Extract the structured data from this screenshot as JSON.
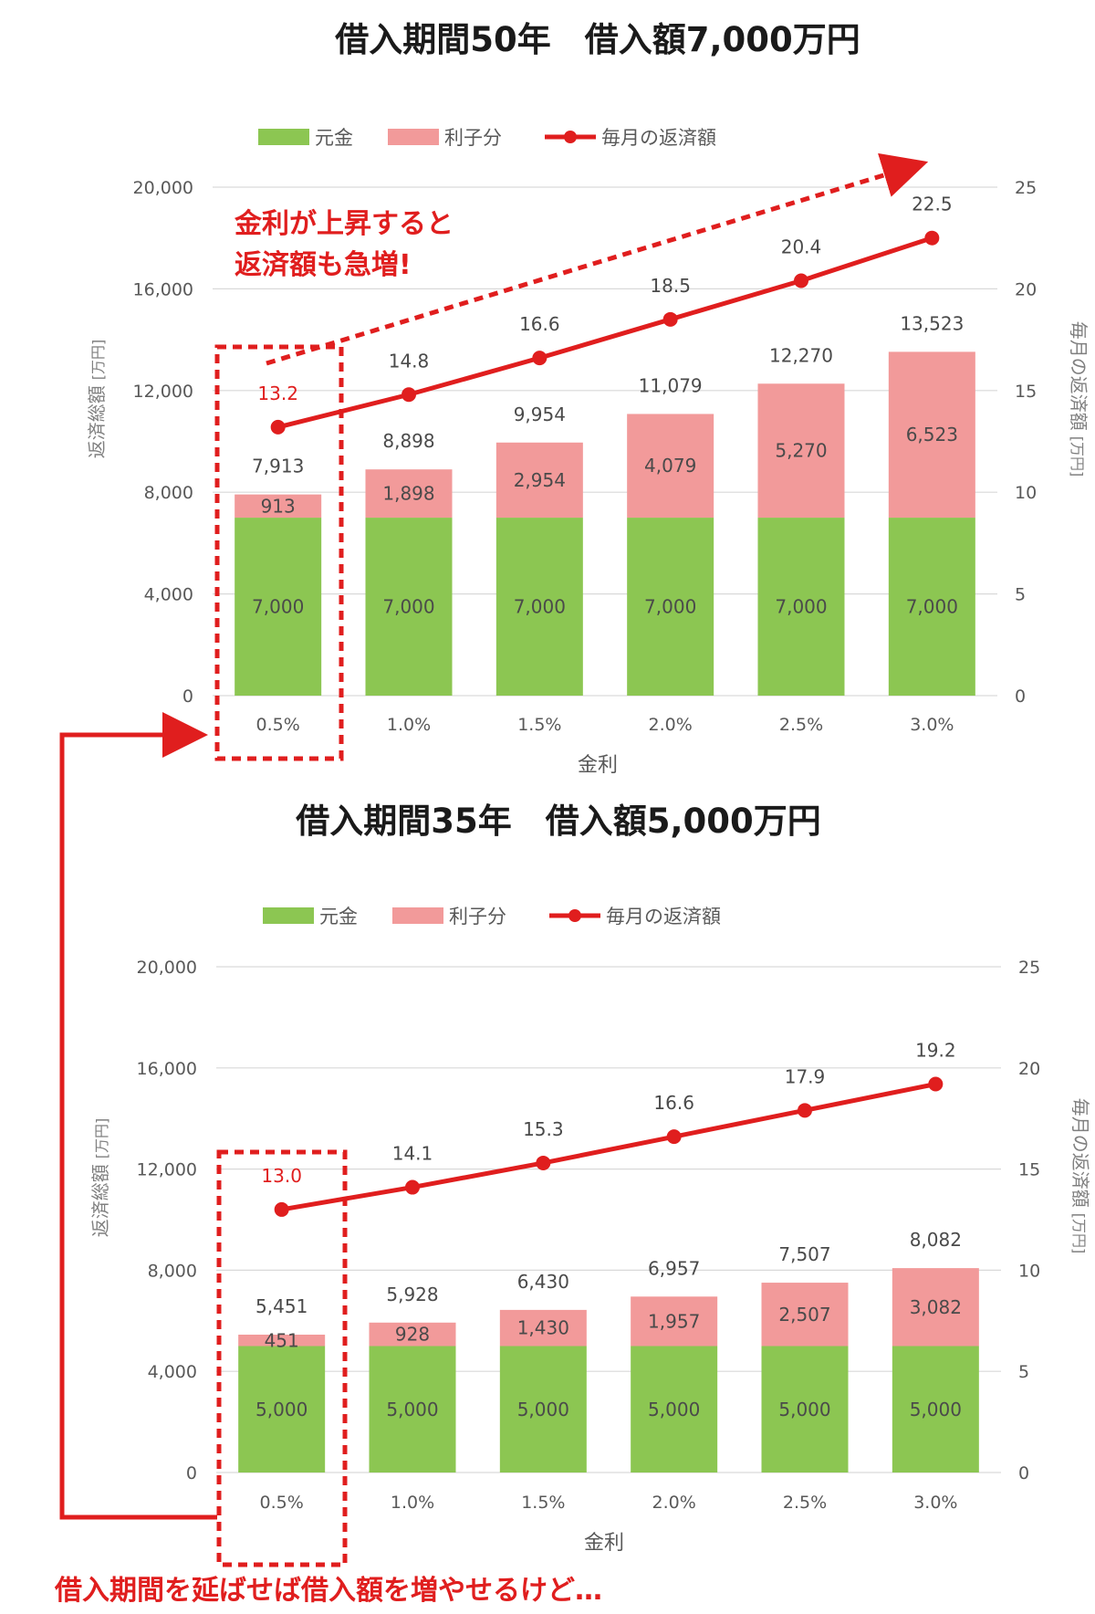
{
  "colors": {
    "principal": "#8cc652",
    "interest": "#f29a9a",
    "line": "#e01e1e",
    "highlight": "#e01e1e",
    "axis_text": "#595959",
    "grid": "#d9d9d9"
  },
  "chart_data": [
    {
      "type": "bar",
      "stacked": true,
      "title": "借入期間50年　借入額7,000万円",
      "categories": [
        "0.5%",
        "1.0%",
        "1.5%",
        "2.0%",
        "2.5%",
        "3.0%"
      ],
      "series": [
        {
          "name": "元金",
          "type": "bar",
          "values": [
            7000,
            7000,
            7000,
            7000,
            7000,
            7000
          ]
        },
        {
          "name": "利子分",
          "type": "bar",
          "values": [
            913,
            1898,
            2954,
            4079,
            5270,
            6523
          ]
        },
        {
          "name": "毎月の返済額",
          "type": "line",
          "axis": "right",
          "values": [
            13.2,
            14.8,
            16.6,
            18.5,
            20.4,
            22.5
          ]
        }
      ],
      "totals": [
        7913,
        8898,
        9954,
        11079,
        12270,
        13523
      ],
      "xlabel": "金利",
      "ylabel": "返済総額",
      "ylabel_unit": "[万円]",
      "y2label": "毎月の返済額",
      "y2label_unit": "[万円]",
      "ylim": [
        0,
        20000
      ],
      "y2lim": [
        0,
        25
      ],
      "yticks": [
        "0",
        "4,000",
        "8,000",
        "12,000",
        "16,000",
        "20,000"
      ],
      "y2ticks": [
        "0",
        "5",
        "10",
        "15",
        "20",
        "25"
      ],
      "legend": "top",
      "grid": true,
      "annotation": "金利が上昇すると\n返済額も急増!"
    },
    {
      "type": "bar",
      "stacked": true,
      "title": "借入期間35年　借入額5,000万円",
      "categories": [
        "0.5%",
        "1.0%",
        "1.5%",
        "2.0%",
        "2.5%",
        "3.0%"
      ],
      "series": [
        {
          "name": "元金",
          "type": "bar",
          "values": [
            5000,
            5000,
            5000,
            5000,
            5000,
            5000
          ]
        },
        {
          "name": "利子分",
          "type": "bar",
          "values": [
            451,
            928,
            1430,
            1957,
            2507,
            3082
          ]
        },
        {
          "name": "毎月の返済額",
          "type": "line",
          "axis": "right",
          "values": [
            13.0,
            14.1,
            15.3,
            16.6,
            17.9,
            19.2
          ]
        }
      ],
      "totals": [
        5451,
        5928,
        6430,
        6957,
        7507,
        8082
      ],
      "xlabel": "金利",
      "ylabel": "返済総額",
      "ylabel_unit": "[万円]",
      "y2label": "毎月の返済額",
      "y2label_unit": "[万円]",
      "ylim": [
        0,
        20000
      ],
      "y2lim": [
        0,
        25
      ],
      "yticks": [
        "0",
        "4,000",
        "8,000",
        "12,000",
        "16,000",
        "20,000"
      ],
      "y2ticks": [
        "0",
        "5",
        "10",
        "15",
        "20",
        "25"
      ],
      "legend": "top",
      "grid": true
    }
  ],
  "footer_note": "借入期間を延ばせば借入額を増やせるけど…"
}
